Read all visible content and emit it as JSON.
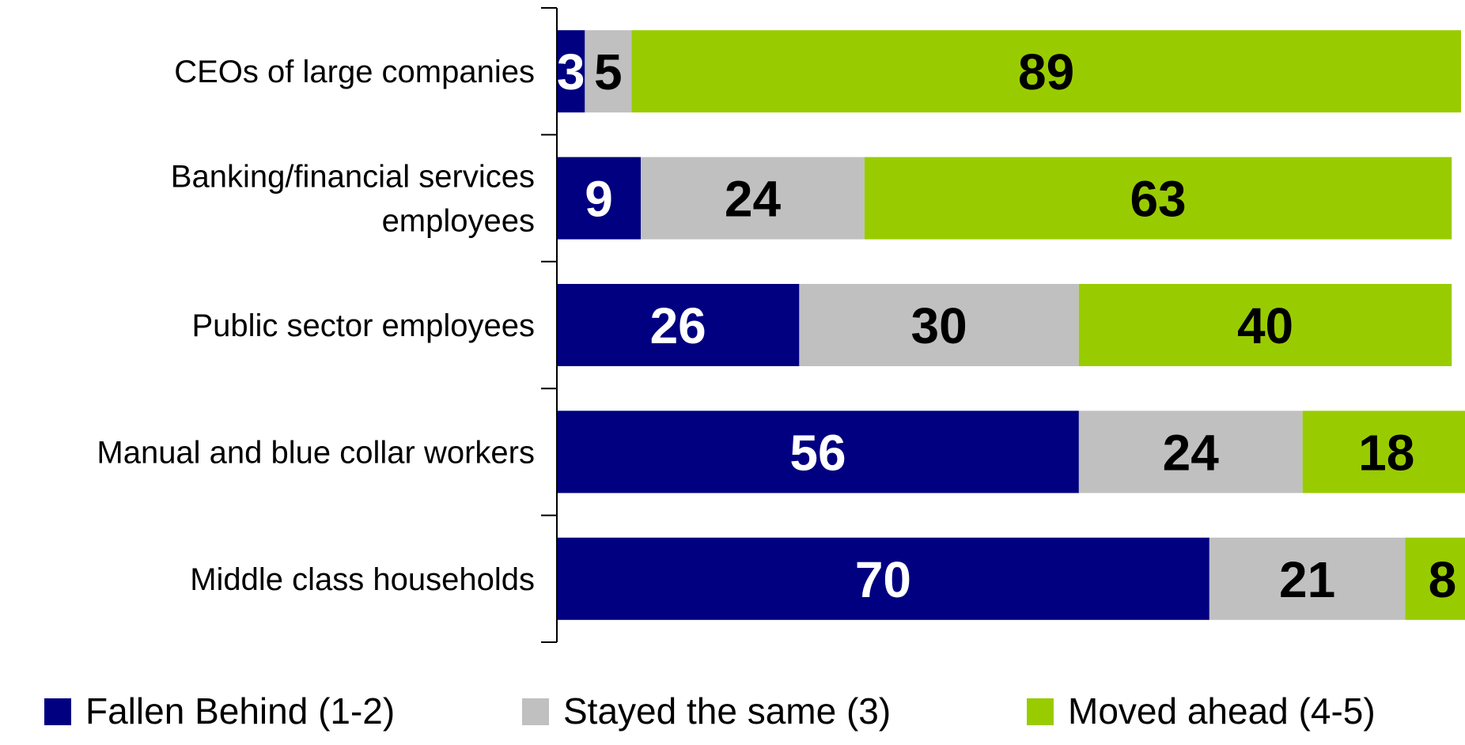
{
  "chart_data": {
    "type": "bar",
    "orientation": "horizontal",
    "stacked": true,
    "categories": [
      [
        "CEOs of large companies"
      ],
      [
        "Banking/financial services",
        "employees"
      ],
      [
        "Public sector employees"
      ],
      [
        "Manual and blue collar workers"
      ],
      [
        "Middle class households"
      ]
    ],
    "series": [
      {
        "name": "Fallen Behind (1-2)",
        "color": "#000080",
        "label_color": "#ffffff",
        "values": [
          3,
          9,
          26,
          56,
          70
        ]
      },
      {
        "name": "Stayed the same (3)",
        "color": "#c0c0c0",
        "label_color": "#000000",
        "values": [
          5,
          24,
          30,
          24,
          21
        ]
      },
      {
        "name": "Moved ahead (4-5)",
        "color": "#99cc00",
        "label_color": "#000000",
        "values": [
          89,
          63,
          40,
          18,
          8
        ]
      }
    ],
    "xlim": [
      0,
      97
    ],
    "title": "",
    "xlabel": "",
    "ylabel": "",
    "grid": false,
    "legend_position": "bottom"
  }
}
